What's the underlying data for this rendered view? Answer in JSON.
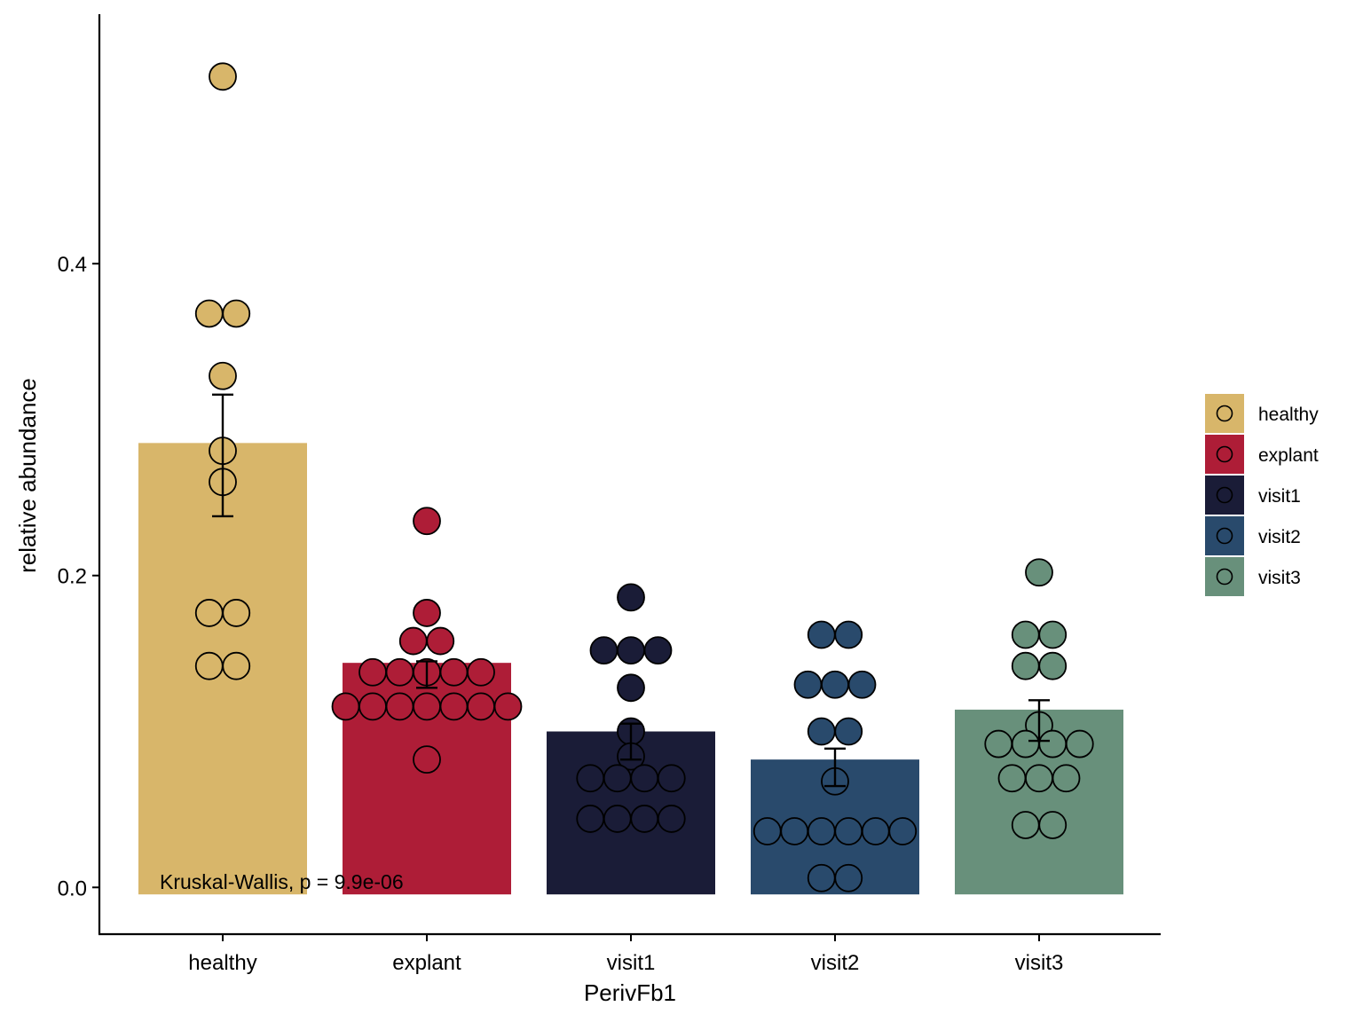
{
  "chart_data": {
    "type": "bar",
    "xlabel": "PerivFb1",
    "ylabel": "relative abundance",
    "ylim": [
      -0.03,
      0.56
    ],
    "yticks": [
      "0.0",
      "0.2",
      "0.4"
    ],
    "grid": false,
    "legend_position": "right",
    "annotation": "Kruskal-Wallis, p = 9.9e-06",
    "categories": [
      "healthy",
      "explant",
      "visit1",
      "visit2",
      "visit3"
    ],
    "colors": [
      "#D8B66A",
      "#AE1D37",
      "#1A1C37",
      "#294A6C",
      "#68907B"
    ],
    "values": [
      0.285,
      0.144,
      0.1,
      0.082,
      0.114
    ],
    "error_low": [
      0.238,
      0.128,
      0.082,
      0.065,
      0.094
    ],
    "error_high": [
      0.316,
      0.145,
      0.105,
      0.089,
      0.12
    ],
    "points": [
      [
        0.52,
        0.368,
        0.368,
        0.328,
        0.28,
        0.26,
        0.176,
        0.176,
        0.142,
        0.142
      ],
      [
        0.235,
        0.176,
        0.158,
        0.158,
        0.138,
        0.138,
        0.138,
        0.138,
        0.138,
        0.116,
        0.116,
        0.116,
        0.116,
        0.116,
        0.116,
        0.116,
        0.082
      ],
      [
        0.186,
        0.152,
        0.152,
        0.152,
        0.128,
        0.1,
        0.084,
        0.07,
        0.07,
        0.07,
        0.07,
        0.044,
        0.044,
        0.044,
        0.044
      ],
      [
        0.162,
        0.162,
        0.13,
        0.13,
        0.13,
        0.1,
        0.1,
        0.068,
        0.036,
        0.036,
        0.036,
        0.036,
        0.036,
        0.036,
        0.006,
        0.006
      ],
      [
        0.202,
        0.162,
        0.162,
        0.142,
        0.142,
        0.104,
        0.092,
        0.092,
        0.092,
        0.092,
        0.07,
        0.07,
        0.07,
        0.04,
        0.04
      ]
    ],
    "legend": [
      "healthy",
      "explant",
      "visit1",
      "visit2",
      "visit3"
    ]
  }
}
